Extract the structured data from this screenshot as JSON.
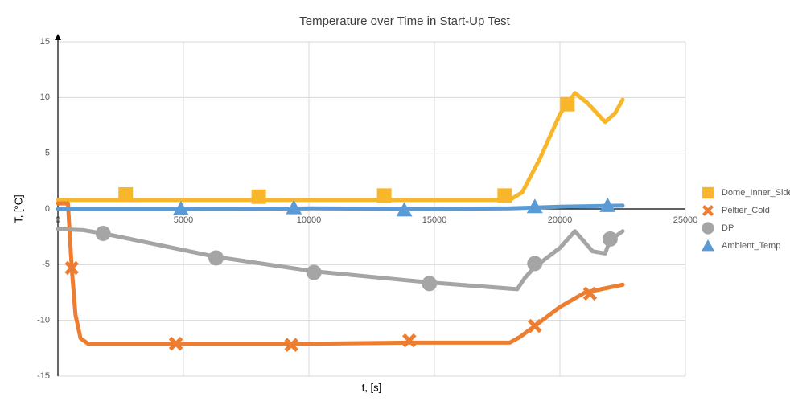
{
  "chart_data": {
    "type": "line",
    "title": "Temperature over Time in Start-Up Test",
    "xlabel": "t, [s]",
    "ylabel": "T, [°C]",
    "xlim": [
      0,
      25000
    ],
    "xticks": [
      0,
      5000,
      10000,
      15000,
      20000,
      25000
    ],
    "ylim": [
      -15,
      15
    ],
    "yticks": [
      -15,
      -10,
      -5,
      0,
      5,
      10,
      15
    ],
    "grid": true,
    "legend": "right",
    "series": [
      {
        "name": "Dome_Inner_Side",
        "color": "#F8B62A",
        "marker": "square",
        "x": [
          0,
          3000,
          8000,
          13000,
          18000,
          18500,
          19200,
          20000,
          20600,
          21100,
          21800,
          22200,
          22500
        ],
        "values": [
          0.8,
          0.8,
          0.8,
          0.8,
          0.8,
          1.5,
          4.5,
          8.5,
          10.4,
          9.5,
          7.8,
          8.6,
          9.8
        ],
        "markers": {
          "x": [
            2700,
            8000,
            13000,
            17800,
            20300
          ],
          "values": [
            1.3,
            1.1,
            1.2,
            1.2,
            9.4
          ]
        }
      },
      {
        "name": "Peltier_Cold",
        "color": "#ED7D31",
        "marker": "x",
        "x": [
          0,
          400,
          550,
          700,
          900,
          1200,
          2000,
          6000,
          10000,
          14000,
          18000,
          18400,
          19000,
          20000,
          21000,
          22500
        ],
        "values": [
          0.5,
          0.5,
          -5.3,
          -9.5,
          -11.6,
          -12.1,
          -12.1,
          -12.1,
          -12.1,
          -12.0,
          -12.0,
          -11.5,
          -10.5,
          -8.8,
          -7.5,
          -6.8
        ],
        "markers": {
          "x": [
            550,
            4700,
            9300,
            14000,
            19000,
            21200
          ],
          "values": [
            -5.3,
            -12.1,
            -12.2,
            -11.8,
            -10.5,
            -7.6
          ]
        }
      },
      {
        "name": "DP",
        "color": "#A5A5A5",
        "marker": "circle",
        "x": [
          0,
          1000,
          1800,
          6300,
          10200,
          14800,
          18300,
          18600,
          19000,
          20000,
          20600,
          21300,
          21800,
          22000,
          22500
        ],
        "values": [
          -1.8,
          -1.9,
          -2.2,
          -4.3,
          -5.6,
          -6.6,
          -7.2,
          -6.2,
          -5.2,
          -3.5,
          -2.0,
          -3.8,
          -4.0,
          -2.8,
          -2.0
        ],
        "markers": {
          "x": [
            1800,
            6300,
            10200,
            14800,
            19000,
            22000
          ],
          "values": [
            -2.2,
            -4.4,
            -5.7,
            -6.7,
            -4.9,
            -2.7
          ]
        }
      },
      {
        "name": "Ambient_Temp",
        "color": "#5B9BD5",
        "marker": "triangle",
        "x": [
          0,
          5000,
          10000,
          15000,
          18000,
          20000,
          22500
        ],
        "values": [
          0.0,
          0.0,
          0.05,
          0.0,
          0.05,
          0.2,
          0.3
        ],
        "markers": {
          "x": [
            4900,
            9400,
            13800,
            19000,
            21900
          ],
          "values": [
            0.0,
            0.1,
            -0.1,
            0.2,
            0.3
          ]
        }
      }
    ]
  }
}
